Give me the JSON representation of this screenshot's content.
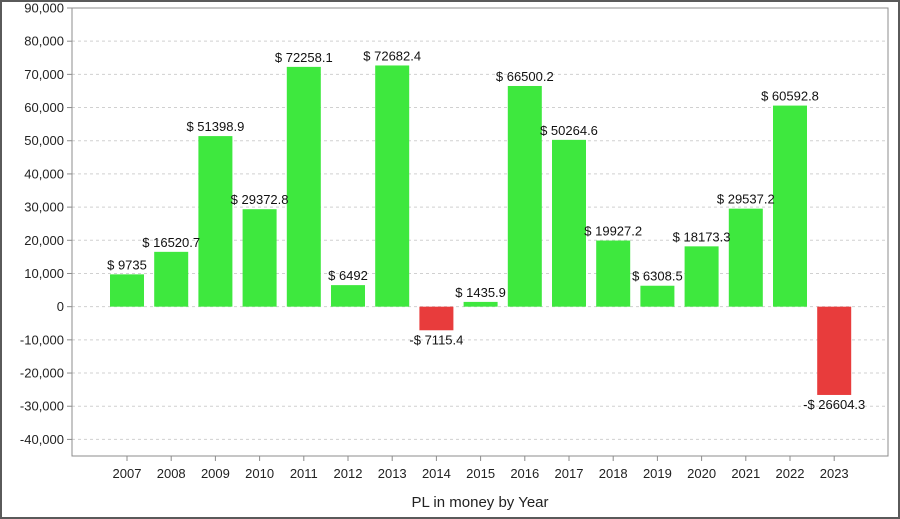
{
  "chart_data": {
    "type": "bar",
    "title": "",
    "xlabel": "PL in money by Year",
    "ylabel": "",
    "ylim": [
      -45000,
      90000
    ],
    "yticks": [
      90000,
      80000,
      70000,
      60000,
      50000,
      40000,
      30000,
      20000,
      10000,
      0,
      -10000,
      -20000,
      -30000,
      -40000
    ],
    "ytick_labels": [
      "90,000",
      "80,000",
      "70,000",
      "60,000",
      "50,000",
      "40,000",
      "30,000",
      "20,000",
      "10,000",
      "0",
      "-10,000",
      "-20,000",
      "-30,000",
      "-40,000"
    ],
    "grid": true,
    "legend": "none",
    "categories": [
      "2007",
      "2008",
      "2009",
      "2010",
      "2011",
      "2012",
      "2013",
      "2014",
      "2015",
      "2016",
      "2017",
      "2018",
      "2019",
      "2020",
      "2021",
      "2022",
      "2023"
    ],
    "values": [
      9735,
      16520.7,
      51398.9,
      29372.8,
      72258.1,
      6492,
      72682.4,
      -7115.4,
      1435.9,
      66500.2,
      50264.6,
      19927.2,
      6308.5,
      18173.3,
      29537.2,
      60592.8,
      -26604.3
    ],
    "data_labels": [
      "$ 9735",
      "$ 16520.7",
      "$ 51398.9",
      "$ 29372.8",
      "$ 72258.1",
      "$ 6492",
      "$ 72682.4",
      "-$ 7115.4",
      "$ 1435.9",
      "$ 66500.2",
      "$ 50264.6",
      "$ 19927.2",
      "$ 6308.5",
      "$ 18173.3",
      "$ 29537.2",
      "$ 60592.8",
      "-$ 26604.3"
    ],
    "colors": {
      "positive": "#3ee83e",
      "negative": "#e83c3c",
      "grid": "#d0d0d0",
      "axis": "#8c8c8c"
    }
  }
}
